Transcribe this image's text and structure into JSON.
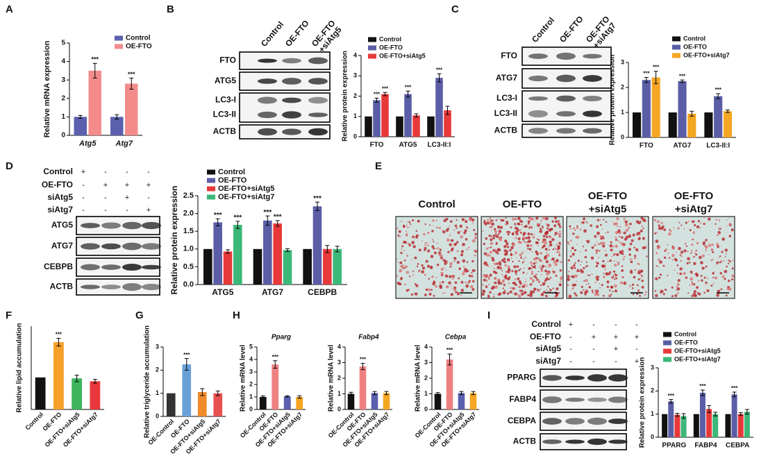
{
  "chart_data": [
    {
      "type": "bar",
      "panel": "A",
      "ylabel": "Relative mRNA expression",
      "categories": [
        "Atg5",
        "Atg7"
      ],
      "italic_categories": true,
      "series": [
        {
          "name": "Control",
          "color": "#5a5fae",
          "values": [
            1,
            1
          ],
          "errors": [
            0.08,
            0.12
          ]
        },
        {
          "name": "OE-FTO",
          "color": "#f38b8b",
          "values": [
            3.5,
            2.8
          ],
          "errors": [
            0.4,
            0.3
          ],
          "sig": [
            "***",
            "***"
          ]
        }
      ],
      "ylim": [
        0,
        5
      ],
      "yticks": [
        0,
        1,
        2,
        3,
        4,
        5
      ]
    },
    {
      "type": "bar",
      "ylabel": "Relative protein expression",
      "categories": [
        "FTO",
        "ATG5",
        "LC3-II:I"
      ],
      "series": [
        {
          "name": "Control",
          "color": "#111111",
          "values": [
            1,
            1,
            1
          ]
        },
        {
          "name": "OE-FTO",
          "color": "#5b5ea6",
          "values": [
            1.8,
            2.1,
            2.9
          ],
          "errors": [
            0.1,
            0.15,
            0.2
          ],
          "sig": [
            "***",
            "***",
            "***"
          ]
        },
        {
          "name": "OE-FTO+siAtg5",
          "color": "#e8393a",
          "values": [
            2.1,
            1.05,
            1.3
          ],
          "errors": [
            0.08,
            0.08,
            0.2
          ],
          "sig": [
            "***",
            null,
            null
          ]
        }
      ],
      "ylim": [
        0,
        4
      ],
      "yticks": [
        0,
        1,
        2,
        3,
        4
      ]
    },
    {
      "type": "bar",
      "ylabel": "Relative protein expression",
      "categories": [
        "FTO",
        "ATG7",
        "LC3-II:I"
      ],
      "series": [
        {
          "name": "Control",
          "color": "#111111",
          "values": [
            1,
            1,
            1
          ]
        },
        {
          "name": "OE-FTO",
          "color": "#5b5ea6",
          "values": [
            2.3,
            2.25,
            1.65
          ],
          "errors": [
            0.1,
            0.05,
            0.1
          ],
          "sig": [
            "***",
            "***",
            "***"
          ]
        },
        {
          "name": "OE-FTO+siAtg7",
          "color": "#f5a623",
          "values": [
            2.4,
            0.95,
            1.05
          ],
          "errors": [
            0.25,
            0.1,
            0.05
          ],
          "sig": [
            "***",
            null,
            null
          ]
        }
      ],
      "ylim": [
        0,
        3
      ],
      "yticks": [
        0,
        1,
        2,
        3
      ]
    },
    {
      "type": "bar",
      "ylabel": "Relative protein expression",
      "categories": [
        "ATG5",
        "ATG7",
        "CEBPB"
      ],
      "series": [
        {
          "name": "Control",
          "color": "#111111",
          "values": [
            1,
            1,
            1
          ]
        },
        {
          "name": "OE-FTO",
          "color": "#5b5ea6",
          "values": [
            1.75,
            1.8,
            2.2
          ],
          "errors": [
            0.1,
            0.13,
            0.12
          ],
          "sig": [
            "***",
            "***",
            "***"
          ]
        },
        {
          "name": "OE-FTO+siAtg5",
          "color": "#e8393a",
          "values": [
            0.93,
            1.72,
            1.0
          ],
          "errors": [
            0.05,
            0.08,
            0.1
          ],
          "sig": [
            null,
            "***",
            null
          ]
        },
        {
          "name": "OE-FTO+siAtg7",
          "color": "#3cb878",
          "values": [
            1.68,
            0.97,
            1.0
          ],
          "errors": [
            0.1,
            0.04,
            0.08
          ],
          "sig": [
            "***",
            null,
            null
          ]
        }
      ],
      "ylim": [
        0,
        2.5
      ],
      "yticks": [
        {
          "value": 0,
          "label": "0.0"
        },
        0.5,
        {
          "value": 1,
          "label": "1.0"
        },
        1.5,
        {
          "value": 2,
          "label": "2.0"
        },
        2.5
      ]
    },
    {
      "type": "bar",
      "panel": "F",
      "ylabel": "Relative lipid accumulation",
      "categories": [
        "Control",
        "OE-FTO",
        "OE-FTO+siAtg5",
        "OE-FTO+siAtg7"
      ],
      "values": [
        1,
        2.1,
        0.97,
        0.88
      ],
      "errors": [
        null,
        0.12,
        0.1,
        0.06
      ],
      "sig": [
        null,
        "***",
        null,
        null
      ],
      "colors": [
        "#111111",
        "#f5a02a",
        "#3cb45c",
        "#e8383b"
      ],
      "ylim": [
        0,
        2.6
      ]
    },
    {
      "type": "bar",
      "panel": "G",
      "ylabel": "Relative triglyceride accumulation",
      "categories": [
        "OE-Control",
        "OE-FTO",
        "OE-FTO+siAtg5",
        "OE-FTO+siAtg7"
      ],
      "values": [
        1,
        2.25,
        1.05,
        1.0
      ],
      "errors": [
        null,
        0.25,
        0.15,
        0.1
      ],
      "sig": [
        null,
        "***",
        null,
        null
      ],
      "colors": [
        "#333333",
        "#6aa0d8",
        "#f08a2a",
        "#e85050"
      ],
      "ylim": [
        0,
        3
      ],
      "yticks": [
        0,
        1,
        2,
        3
      ]
    },
    {
      "type": "bar",
      "panel": "H",
      "title": "Pparg",
      "ylabel": "Relative mRNA level",
      "categories": [
        "OE-Control",
        "OE-FTO",
        "OE-FTO+siAtg5",
        "OE-FTO+siAtg7"
      ],
      "values": [
        1,
        3.6,
        1.05,
        1.0
      ],
      "errors": [
        0.08,
        0.3,
        0.05,
        0.1
      ],
      "sig": [
        null,
        "***",
        null,
        null
      ],
      "colors": [
        "#111111",
        "#f08080",
        "#5a5fae",
        "#f5a623"
      ],
      "ylim": [
        0,
        5
      ],
      "yticks": [
        0,
        1,
        2,
        3,
        4,
        5
      ]
    },
    {
      "type": "bar",
      "title": "Fabp4",
      "ylabel": "Relative mRNA level",
      "categories": [
        "OE-Control",
        "OE-FTO",
        "OE-FTO+siAtg5",
        "OE-FTO+siAtg7"
      ],
      "values": [
        1,
        2.75,
        1.05,
        1.05
      ],
      "errors": [
        0.1,
        0.2,
        0.1,
        0.1
      ],
      "sig": [
        null,
        "***",
        null,
        null
      ],
      "colors": [
        "#111111",
        "#f08080",
        "#5a5fae",
        "#f5a623"
      ],
      "ylim": [
        0,
        4
      ],
      "yticks": [
        0,
        1,
        2,
        3,
        4
      ]
    },
    {
      "type": "bar",
      "title": "Cebpa",
      "ylabel": "Relative mRNA level",
      "categories": [
        "OE-Control",
        "OE-FTO",
        "OE-FTO+siAtg5",
        "OE-FTO+siAtg7"
      ],
      "values": [
        1,
        3.2,
        1.05,
        1.05
      ],
      "errors": [
        0.08,
        0.35,
        0.1,
        0.1
      ],
      "sig": [
        null,
        "***",
        null,
        null
      ],
      "colors": [
        "#111111",
        "#f08080",
        "#5a5fae",
        "#f5a623"
      ],
      "ylim": [
        0,
        4
      ],
      "yticks": [
        0,
        1,
        2,
        3,
        4
      ]
    },
    {
      "type": "bar",
      "ylabel": "Relative protein expression",
      "categories": [
        "PPARG",
        "FABP4",
        "CEBPA"
      ],
      "series": [
        {
          "name": "Control",
          "color": "#111111",
          "values": [
            1,
            1,
            1
          ]
        },
        {
          "name": "OE-FTO",
          "color": "#5b5ea6",
          "values": [
            1.55,
            1.92,
            1.85
          ],
          "errors": [
            0.08,
            0.12,
            0.1
          ],
          "sig": [
            "***",
            "***",
            "***"
          ]
        },
        {
          "name": "OE-FTO+siAtg5",
          "color": "#e8393a",
          "values": [
            0.97,
            1.22,
            1.0
          ],
          "errors": [
            0.06,
            0.15,
            0.06
          ]
        },
        {
          "name": "OE-FTO+siAtg7",
          "color": "#3cb878",
          "values": [
            0.92,
            1.0,
            1.1
          ],
          "errors": [
            0.1,
            0.08,
            0.1
          ]
        }
      ],
      "ylim": [
        0,
        3
      ],
      "yticks": [
        0,
        1,
        2,
        3
      ]
    }
  ],
  "blots": [
    {
      "panel": "B",
      "lanes": [
        [
          "Control"
        ],
        [
          "OE-FTO"
        ],
        [
          "OE-FTO",
          "+siAtg5"
        ]
      ],
      "rows": [
        "FTO",
        "ATG5",
        "LC3-I",
        "LC3-II",
        "ACTB"
      ]
    },
    {
      "panel": "C",
      "lanes": [
        [
          "Control"
        ],
        [
          "OE-FTO"
        ],
        [
          "OE-FTO",
          "+siAtg7"
        ]
      ],
      "rows": [
        "FTO",
        "ATG7",
        "LC3-I",
        "LC3-II",
        "ACTB"
      ]
    },
    {
      "panel": "D",
      "treatments": {
        "rows": [
          "Control",
          "OE-FTO",
          "siAtg5",
          "siAtg7"
        ],
        "signs": [
          [
            "+",
            "-",
            "-",
            "-"
          ],
          [
            "-",
            "+",
            "+",
            "+"
          ],
          [
            "-",
            "-",
            "+",
            "-"
          ],
          [
            "-",
            "-",
            "-",
            "+"
          ]
        ]
      },
      "rows": [
        "ATG5",
        "ATG7",
        "CEBPB",
        "ACTB"
      ]
    },
    {
      "panel": "I",
      "treatments": {
        "rows": [
          "Control",
          "OE-FTO",
          "siAtg5",
          "siAtg7"
        ],
        "signs": [
          [
            "+",
            "-",
            "-",
            "-"
          ],
          [
            "-",
            "+",
            "+",
            "+"
          ],
          [
            "-",
            "-",
            "+",
            "-"
          ],
          [
            "-",
            "-",
            "-",
            "+"
          ]
        ]
      },
      "rows": [
        "PPARG",
        "FABP4",
        "CEBPA",
        "ACTB"
      ]
    }
  ],
  "images": {
    "panel": "E",
    "labels": [
      [
        "Control"
      ],
      [
        "OE-FTO"
      ],
      [
        "OE-FTO",
        "+siAtg5"
      ],
      [
        "OE-FTO",
        "+siAtg7"
      ]
    ]
  }
}
